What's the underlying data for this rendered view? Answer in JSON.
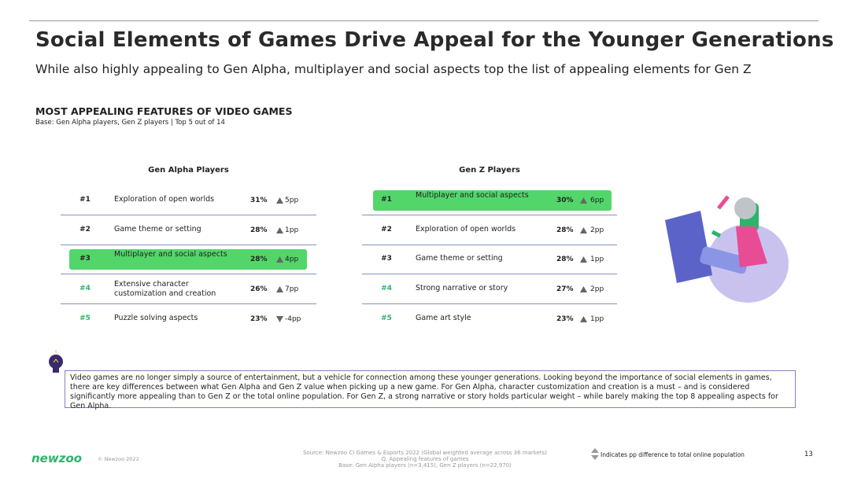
{
  "header": {
    "title": "Social Elements of Games Drive Appeal for the Younger Generations",
    "subtitle": "While also highly appealing to Gen Alpha, multiplayer and social aspects top the list of appealing elements for Gen Z"
  },
  "section": {
    "heading": "MOST APPEALING FEATURES OF VIDEO GAMES",
    "base": "Base: Gen Alpha players, Gen Z players | Top 5 out of 14"
  },
  "tables": [
    {
      "title": "Gen Alpha Players",
      "rows": [
        {
          "rank": "#1",
          "feature": "Exploration of open worlds",
          "share": "31%",
          "diff": "5pp",
          "direction": "up",
          "highlight": false
        },
        {
          "rank": "#2",
          "feature": "Game theme or setting",
          "share": "28%",
          "diff": "1pp",
          "direction": "up",
          "highlight": false
        },
        {
          "rank": "#3",
          "feature": "Multiplayer and social aspects",
          "share": "28%",
          "diff": "4pp",
          "direction": "up",
          "highlight": true
        },
        {
          "rank": "#4",
          "feature": "Extensive character customization and creation",
          "share": "26%",
          "diff": "7pp",
          "direction": "up",
          "highlight": false
        },
        {
          "rank": "#5",
          "feature": "Puzzle solving aspects",
          "share": "23%",
          "diff": "-4pp",
          "direction": "down",
          "highlight": false
        }
      ]
    },
    {
      "title": "Gen Z Players",
      "rows": [
        {
          "rank": "#1",
          "feature": "Multiplayer and social aspects",
          "share": "30%",
          "diff": "6pp",
          "direction": "up",
          "highlight": true
        },
        {
          "rank": "#2",
          "feature": "Exploration of open worlds",
          "share": "28%",
          "diff": "2pp",
          "direction": "up",
          "highlight": false
        },
        {
          "rank": "#3",
          "feature": "Game theme or setting",
          "share": "28%",
          "diff": "1pp",
          "direction": "up",
          "highlight": false
        },
        {
          "rank": "#4",
          "feature": "Strong narrative or story",
          "share": "27%",
          "diff": "2pp",
          "direction": "up",
          "highlight": false
        },
        {
          "rank": "#5",
          "feature": "Game art style",
          "share": "23%",
          "diff": "1pp",
          "direction": "up",
          "highlight": false
        }
      ]
    }
  ],
  "callout": "Video games are no longer simply a source of entertainment, but a vehicle for connection among these younger generations. Looking beyond the importance of social elements in games, there are key differences between what Gen Alpha and Gen Z value when picking up a new game. For Gen Alpha, character customization and creation is a must – and is considered significantly more appealing than to Gen Z or the total online population. For Gen Z, a strong narrative or story holds particular weight – while barely making the top 8 appealing aspects for Gen Alpha.",
  "footer": {
    "logo": "newzoo",
    "copyright": "© Newzoo 2022",
    "source": [
      "Source: Newzoo CI Games & Esports 2022 (Global weighted average across 36 markets)",
      "Q. Appealing features of games",
      "Base: Gen Alpha players (n=3,415), Gen Z players (n=22,970)"
    ],
    "legend": "Indicates pp difference to total online population",
    "page": "13"
  }
}
